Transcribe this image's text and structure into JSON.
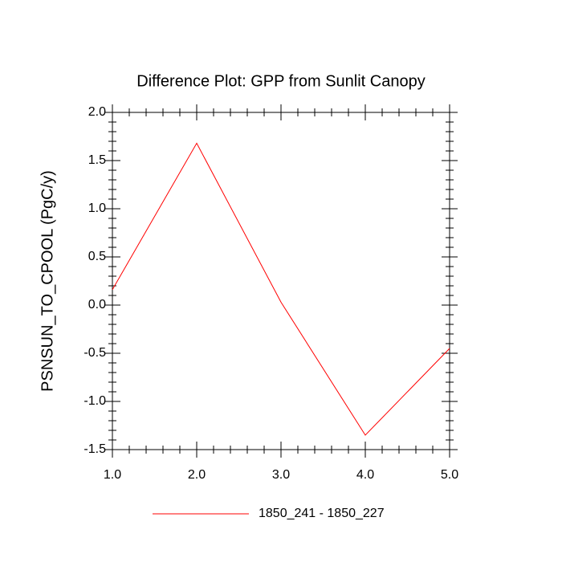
{
  "chart_data": {
    "type": "line",
    "title": "Difference Plot: GPP from Sunlit Canopy",
    "y_label": "PSNSUN_TO_CPOOL  (PgC/y)",
    "x": [
      1,
      2,
      3,
      4,
      5
    ],
    "series": [
      {
        "name": "1850_241 - 1850_227",
        "color": "#ff0000",
        "values": [
          0.16,
          1.68,
          0.03,
          -1.35,
          -0.45
        ]
      }
    ],
    "xlim": [
      1,
      5
    ],
    "xticks": [
      {
        "value": 1,
        "label": "1.0"
      },
      {
        "value": 2,
        "label": "2.0"
      },
      {
        "value": 3,
        "label": "3.0"
      },
      {
        "value": 4,
        "label": "4.0"
      },
      {
        "value": 5,
        "label": "5.0"
      }
    ],
    "ylim": [
      -1.5,
      2
    ],
    "yticks": [
      -1.5,
      {
        "value": -1,
        "label": "-1.0"
      },
      -0.5,
      {
        "value": 0,
        "label": "0.0"
      },
      0.5,
      {
        "value": 1,
        "label": "1.0"
      },
      1.5,
      {
        "value": 2,
        "label": "2.0"
      }
    ],
    "grid": false
  }
}
